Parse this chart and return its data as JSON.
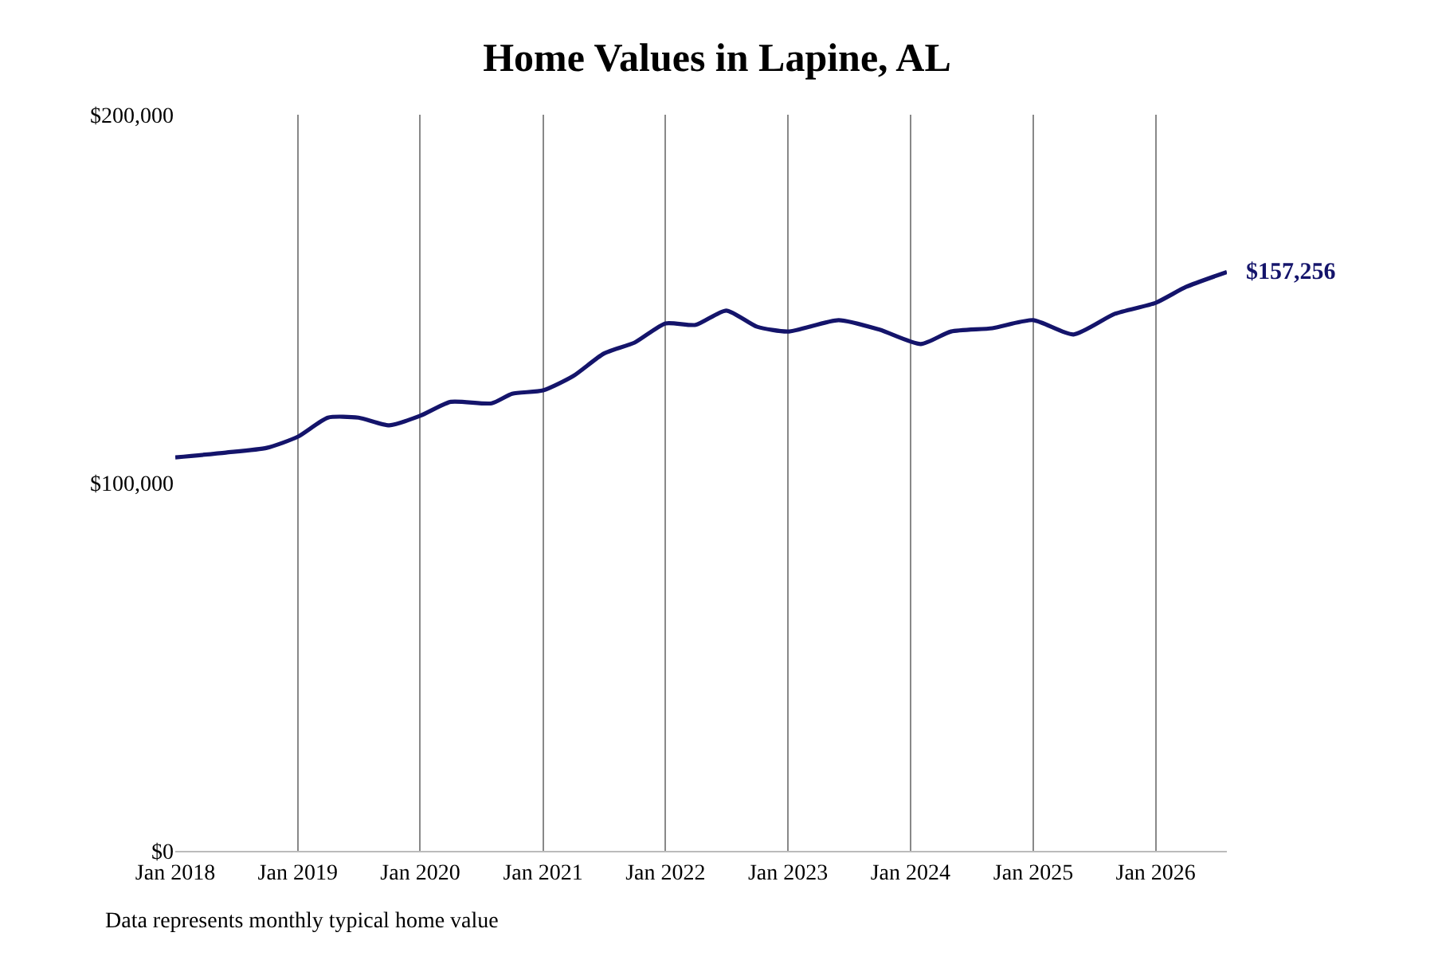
{
  "chart_data": {
    "type": "line",
    "title": "Home Values in Lapine, AL",
    "x": [
      "2018-01",
      "2018-06",
      "2018-10",
      "2019-01",
      "2019-04",
      "2019-07",
      "2019-10",
      "2020-01",
      "2020-04",
      "2020-08",
      "2020-10",
      "2021-01",
      "2021-04",
      "2021-07",
      "2021-10",
      "2022-01",
      "2022-04",
      "2022-07",
      "2022-10",
      "2023-01",
      "2023-06",
      "2023-10",
      "2024-02",
      "2024-05",
      "2024-09",
      "2025-01",
      "2025-05",
      "2025-09",
      "2026-01",
      "2026-04",
      "2026-08"
    ],
    "series": [
      {
        "color": "#14146b",
        "values": [
          106900,
          108200,
          109500,
          112500,
          117700,
          117700,
          115600,
          118200,
          122000,
          121600,
          124200,
          125100,
          129000,
          135100,
          138100,
          143300,
          142900,
          146800,
          142400,
          141100,
          144200,
          141600,
          137700,
          141100,
          142000,
          144200,
          140300,
          145900,
          148900,
          153200,
          157256
        ]
      }
    ],
    "xticks": [
      {
        "value": "2018-01",
        "label": "Jan 2018"
      },
      {
        "value": "2019-01",
        "label": "Jan 2019"
      },
      {
        "value": "2020-01",
        "label": "Jan 2020"
      },
      {
        "value": "2021-01",
        "label": "Jan 2021"
      },
      {
        "value": "2022-01",
        "label": "Jan 2022"
      },
      {
        "value": "2023-01",
        "label": "Jan 2023"
      },
      {
        "value": "2024-01",
        "label": "Jan 2024"
      },
      {
        "value": "2025-01",
        "label": "Jan 2025"
      },
      {
        "value": "2026-01",
        "label": "Jan 2026"
      }
    ],
    "xlim": [
      "2018-01",
      "2026-08"
    ],
    "ylim": [
      0,
      200000
    ],
    "yticks": [
      {
        "value": 0,
        "label": "$0"
      },
      {
        "value": 100000,
        "label": "$100,000"
      },
      {
        "value": 200000,
        "label": "$200,000"
      }
    ],
    "grid": "x",
    "marker": "none",
    "line_style": "solid",
    "annotations": [
      {
        "text": "$157,256",
        "x": "2026-08",
        "y": 157256
      },
      "Data represents monthly typical home value"
    ]
  }
}
